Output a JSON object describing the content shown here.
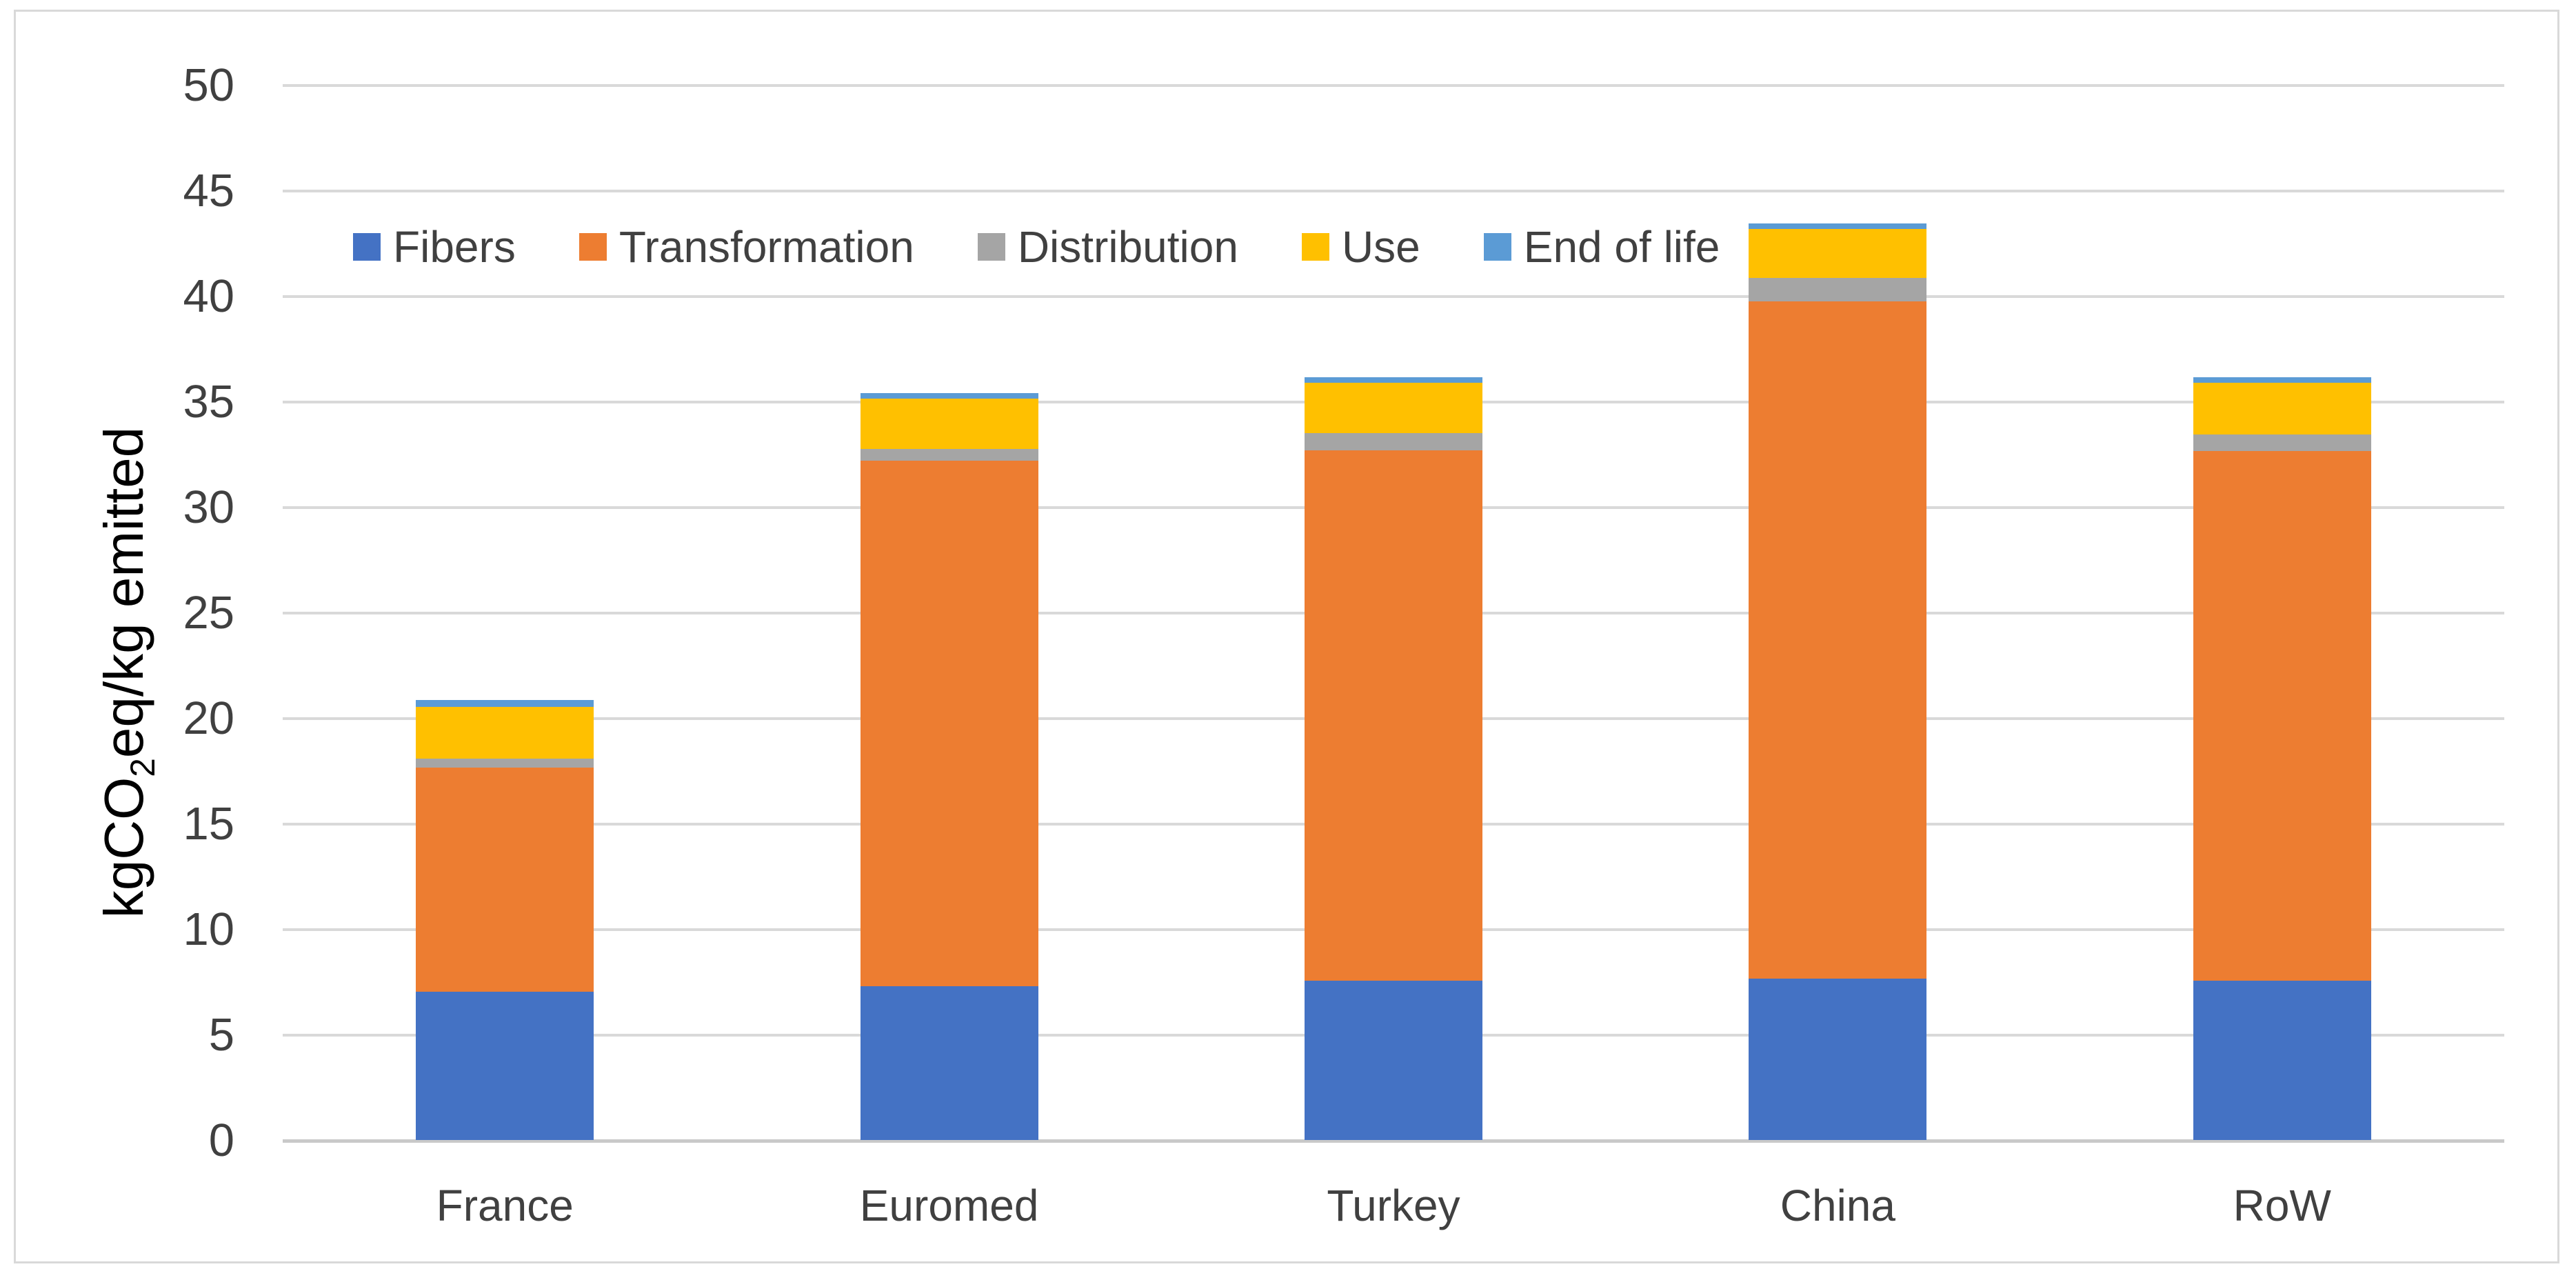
{
  "chart_data": {
    "type": "bar",
    "stacked": true,
    "categories": [
      "France",
      "Euromed",
      "Turkey",
      "China",
      "RoW"
    ],
    "series": [
      {
        "name": "Fibers",
        "color": "#4472C4",
        "values": [
          7.05,
          7.3,
          7.55,
          7.65,
          7.55
        ]
      },
      {
        "name": "Transformation",
        "color": "#ED7D31",
        "values": [
          10.6,
          24.9,
          25.15,
          32.1,
          25.1
        ]
      },
      {
        "name": "Distribution",
        "color": "#A5A5A5",
        "values": [
          0.45,
          0.55,
          0.8,
          1.1,
          0.8
        ]
      },
      {
        "name": "Use",
        "color": "#FFC000",
        "values": [
          2.45,
          2.4,
          2.4,
          2.35,
          2.45
        ]
      },
      {
        "name": "End of life",
        "color": "#5B9BD5",
        "values": [
          0.3,
          0.25,
          0.25,
          0.25,
          0.25
        ]
      }
    ],
    "ylabel": {
      "prefix": "kgCO",
      "sub": "2",
      "suffix": "eq/kg emitted"
    },
    "ylim": [
      0,
      50
    ],
    "ytick_step": 5,
    "yticks": [
      0,
      5,
      10,
      15,
      20,
      25,
      30,
      35,
      40,
      45,
      50
    ],
    "grid": true,
    "legend_position": "top-left-inside",
    "colors": {
      "gridline": "#D9D9D9",
      "axis_line": "#C9C9C9",
      "text": "#404040",
      "background": "#FFFFFF",
      "border": "#D9D9D9"
    }
  }
}
